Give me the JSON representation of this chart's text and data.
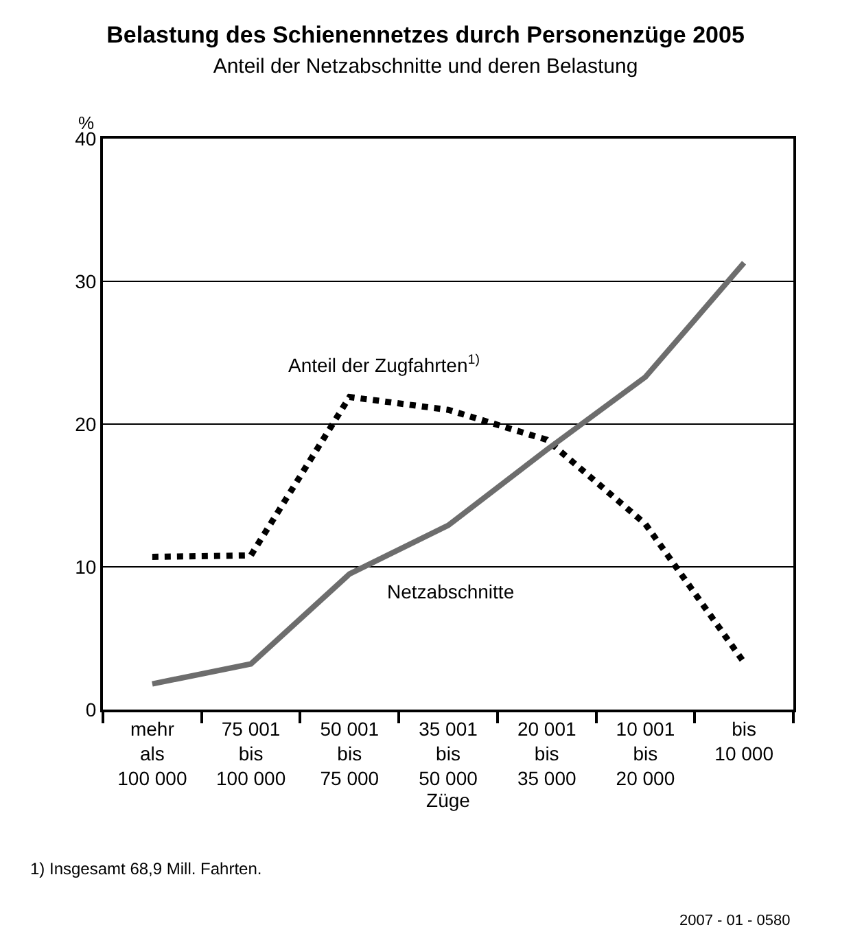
{
  "chart_data": {
    "type": "line",
    "title": "Belastung des Schienennetzes durch Personenzüge 2005",
    "subtitle": "Anteil der Netzabschnitte und deren Belastung",
    "xlabel": "Züge",
    "ylabel": "%",
    "categories": [
      "mehr\nals\n100 000",
      "75 001\nbis\n100 000",
      "50 001\nbis\n75 000",
      "35 001\nbis\n50 000",
      "20 001\nbis\n35 000",
      "10 001\nbis\n20 000",
      "bis\n10 000"
    ],
    "series": [
      {
        "name": "Anteil der Zugfahrten$^{1)}$",
        "color": "#000000",
        "line_style": "dotted",
        "values": [
          10.7,
          10.8,
          21.9,
          21.0,
          18.9,
          13.0,
          3.3
        ]
      },
      {
        "name": "Netzabschnitte",
        "color": "#6d6d6d",
        "line_style": "solid",
        "values": [
          1.8,
          3.2,
          9.5,
          12.9,
          18.2,
          23.3,
          31.3
        ]
      }
    ],
    "ylim": [
      0,
      40
    ],
    "yticks": [
      0,
      10,
      20,
      30,
      40
    ],
    "grid": "y",
    "legend": false,
    "marker": "none",
    "annotations": [
      "1) Insgesamt 68,9 Mill. Fahrten.",
      "2007 - 01 - 0580"
    ]
  }
}
